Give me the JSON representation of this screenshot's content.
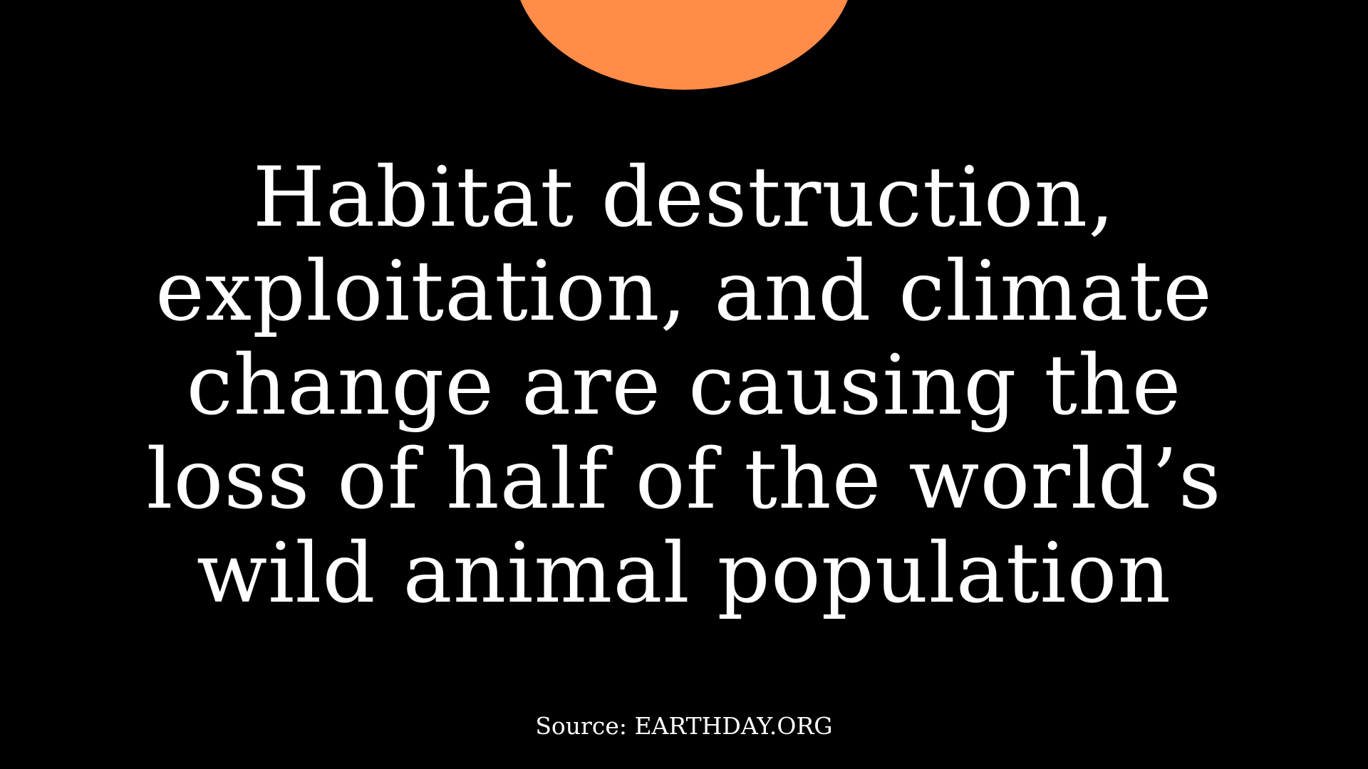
{
  "headline": {
    "lines": [
      "Habitat destruction,",
      "exploitation, and climate",
      "change are causing the",
      "loss of half of the world’s",
      "wild animal population"
    ]
  },
  "source": {
    "text": "Source: EARTHDAY.ORG"
  },
  "colors": {
    "background": "#000000",
    "accent_circle": "#FF8C48",
    "text": "#FFFFFF"
  }
}
